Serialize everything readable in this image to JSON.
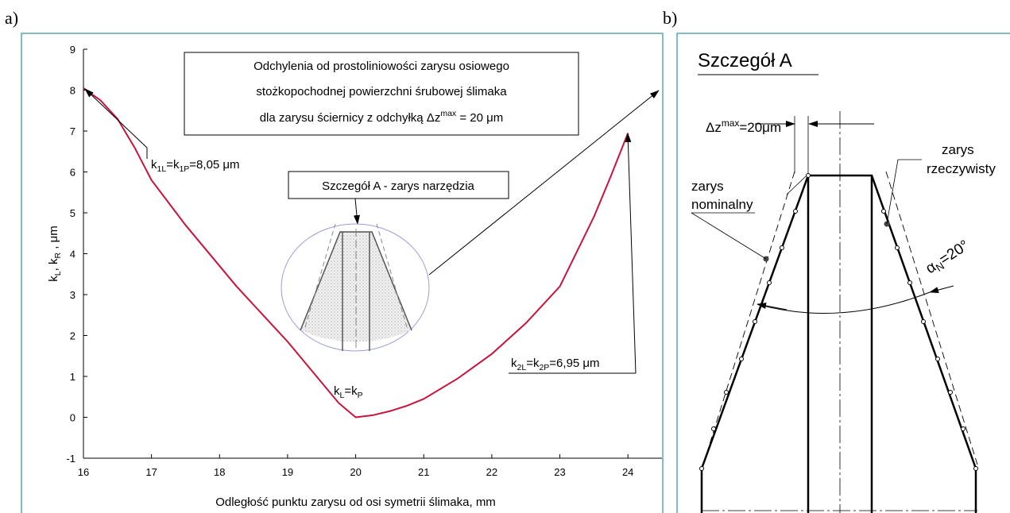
{
  "chart_data": {
    "type": "line",
    "panel_label": "a)",
    "x": [
      16,
      16.25,
      16.5,
      16.75,
      17,
      17.25,
      17.5,
      17.75,
      18,
      18.25,
      18.5,
      18.75,
      19,
      19.25,
      19.5,
      19.75,
      20,
      20.25,
      20.5,
      20.75,
      21,
      21.5,
      22,
      22.5,
      23,
      23.5,
      23.75,
      24
    ],
    "values": [
      8.05,
      7.75,
      7.3,
      6.6,
      5.8,
      5.25,
      4.7,
      4.2,
      3.7,
      3.2,
      2.75,
      2.3,
      1.85,
      1.35,
      0.85,
      0.35,
      0,
      0.05,
      0.15,
      0.28,
      0.45,
      0.95,
      1.55,
      2.3,
      3.2,
      4.9,
      5.9,
      6.95
    ],
    "color": "#c8143c",
    "xlim": [
      16,
      24.5
    ],
    "ylim": [
      -1,
      9
    ],
    "xticks": [
      16,
      17,
      18,
      19,
      20,
      21,
      22,
      23,
      24
    ],
    "yticks": [
      -1,
      0,
      1,
      2,
      3,
      4,
      5,
      6,
      7,
      8,
      9
    ],
    "x_label": "Odległość punktu zarysu od osi symetrii ślimaka,  mm",
    "y_label": {
      "script": "sub",
      "parts": [
        "k",
        "L",
        ", k",
        "R",
        " ,  μm"
      ]
    },
    "title_box": [
      {
        "script": "sup",
        "parts": [
          "Odchylenia od prostoliniowości zarysu osiowego"
        ]
      },
      {
        "script": "sup",
        "parts": [
          "stożkopochodnej powierzchni śrubowej ślimaka"
        ]
      },
      {
        "script": "sup",
        "parts": [
          "dla zarysu ściernicy z odchyłką Δz",
          "max",
          " = 20 μm"
        ]
      }
    ],
    "annotations": {
      "k1": {
        "script": "sub",
        "parts": [
          "k",
          "1L",
          "=k",
          "1P",
          "=8,05 μm"
        ]
      },
      "k2": {
        "script": "sub",
        "parts": [
          "k",
          "2L",
          "=k",
          "2P",
          "=6,95 μm"
        ]
      },
      "kmin": {
        "script": "sub",
        "parts": [
          "k",
          "L",
          "=k",
          "P"
        ]
      },
      "detail": {
        "script": "sub",
        "parts": [
          "Szczegół A - zarys narzędzia"
        ]
      }
    }
  },
  "panel_b": {
    "panel_label": "b)",
    "title": "Szczegół A",
    "delta": {
      "script": "sup",
      "parts": [
        "Δz",
        "max",
        "=20μm"
      ]
    },
    "real_1": "zarys",
    "real_2": "rzeczywisty",
    "nominal_1": "zarys",
    "nominal_2": "nominalny",
    "angle": {
      "script": "sub",
      "parts": [
        "α",
        "N",
        "=20°"
      ]
    }
  }
}
